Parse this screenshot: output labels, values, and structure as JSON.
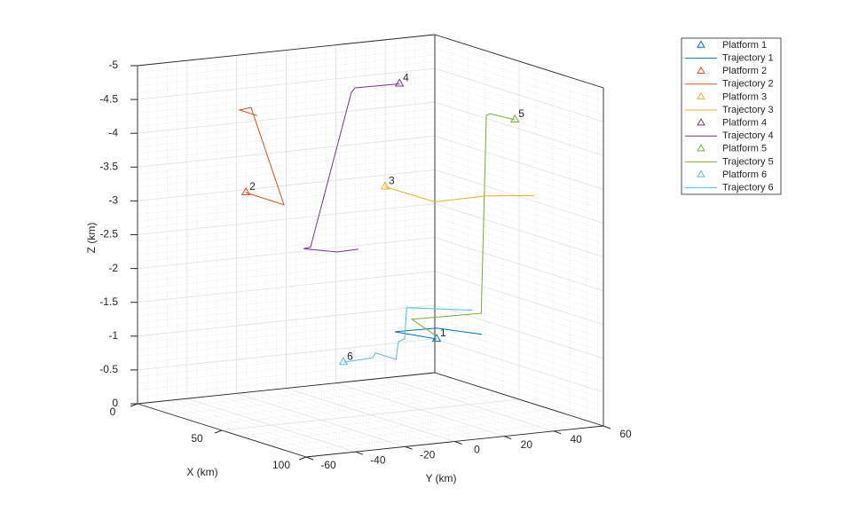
{
  "chart_data": {
    "type": "line3d",
    "xlabel": "X (km)",
    "ylabel": "Y (km)",
    "zlabel": "Z (km)",
    "xlim": [
      0,
      100
    ],
    "xticks": [
      0,
      50,
      100
    ],
    "ylim": [
      -60,
      60
    ],
    "yticks": [
      -60,
      -40,
      -20,
      0,
      20,
      40,
      60
    ],
    "zlim": [
      -5,
      0
    ],
    "zticks": [
      -5,
      -4.5,
      -4,
      -3.5,
      -3,
      -2.5,
      -2,
      -1.5,
      -1,
      -0.5,
      0
    ],
    "zdir": "reverse",
    "grid": true,
    "minor_grid": true,
    "legend": "outside-top-right",
    "series": [
      {
        "name": "Platform 1",
        "label": "1",
        "marker": "triangle",
        "color": "#0072BD",
        "x": [
          50
        ],
        "y": [
          26.7
        ],
        "z": [
          -1.02
        ]
      },
      {
        "name": "Trajectory 1",
        "color": "#0072BD",
        "x": [
          50,
          50,
          50,
          50
        ],
        "y": [
          26.7,
          9.9,
          26.7,
          45
        ],
        "z": [
          -1.02,
          -1.19,
          -1.18,
          -1.02
        ]
      },
      {
        "name": "Platform 2",
        "label": "2",
        "marker": "triangle",
        "color": "#D95319",
        "x": [
          50
        ],
        "y": [
          -50.3
        ],
        "z": [
          -3.48
        ]
      },
      {
        "name": "Trajectory 2",
        "color": "#D95319",
        "x": [
          50,
          50,
          50,
          50,
          50
        ],
        "y": [
          -50.3,
          -34.9,
          -48.2,
          -52.8,
          -45.7
        ],
        "z": [
          -3.48,
          -3.24,
          -4.73,
          -4.71,
          -4.6
        ]
      },
      {
        "name": "Platform 3",
        "label": "3",
        "marker": "triangle",
        "color": "#EDB120",
        "x": [
          50
        ],
        "y": [
          5.9
        ],
        "z": [
          -3.35
        ]
      },
      {
        "name": "Trajectory 3",
        "color": "#EDB120",
        "x": [
          50,
          50,
          50,
          50
        ],
        "y": [
          5.9,
          26,
          46.8,
          66.2
        ],
        "z": [
          -3.35,
          -3.05,
          -3.06,
          -2.99
        ]
      },
      {
        "name": "Platform 4",
        "label": "4",
        "marker": "triangle",
        "color": "#7E2F8E",
        "x": [
          50
        ],
        "y": [
          11.7
        ],
        "z": [
          -4.85
        ]
      },
      {
        "name": "Trajectory 4",
        "color": "#7E2F8E",
        "x": [
          50,
          50,
          50,
          50,
          50,
          50,
          50
        ],
        "y": [
          11.7,
          -6.2,
          -7.7,
          -24.2,
          -27,
          -13.4,
          -4.8
        ],
        "z": [
          -4.85,
          -4.86,
          -4.8,
          -2.57,
          -2.56,
          -2.46,
          -2.47
        ]
      },
      {
        "name": "Platform 5",
        "label": "5",
        "marker": "triangle",
        "color": "#77AC30",
        "x": [
          50
        ],
        "y": [
          58.3
        ],
        "z": [
          -4.14
        ]
      },
      {
        "name": "Trajectory 5",
        "color": "#77AC30",
        "x": [
          50,
          50,
          50,
          50,
          50,
          50
        ],
        "y": [
          58.3,
          48.2,
          46.8,
          44.7,
          16.7,
          26
        ],
        "z": [
          -4.14,
          -4.27,
          -4.25,
          -1.33,
          -1.35,
          -1.08
        ]
      },
      {
        "name": "Platform 6",
        "label": "6",
        "marker": "triangle",
        "color": "#4DBEEE",
        "x": [
          50
        ],
        "y": [
          -10.9
        ],
        "z": [
          -0.82
        ]
      },
      {
        "name": "Trajectory 6",
        "color": "#4DBEEE",
        "x": [
          50,
          50,
          50,
          50,
          50,
          50,
          50,
          50
        ],
        "y": [
          -10.9,
          0.9,
          2,
          10.3,
          11.3,
          13.8,
          14.6,
          41.1
        ],
        "z": [
          -0.82,
          -0.84,
          -0.91,
          -0.78,
          -1.04,
          -1.07,
          -1.53,
          -1.39
        ]
      }
    ]
  }
}
